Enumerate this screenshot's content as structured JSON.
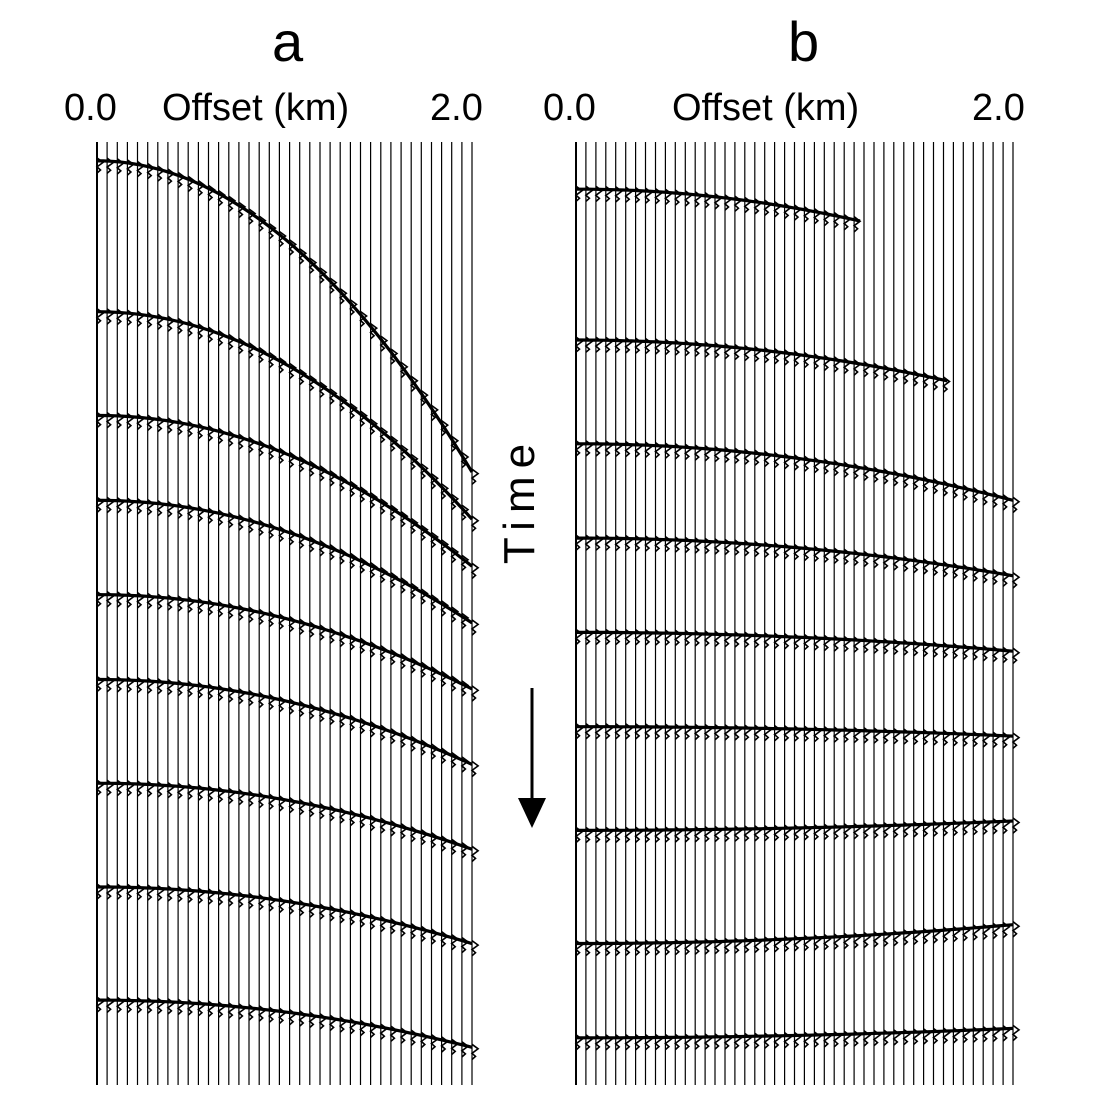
{
  "panels": [
    {
      "letter": "a",
      "axis_min": "0.0",
      "axis_label": "Offset (km)",
      "axis_max": "2.0",
      "trace_count": 38,
      "offset_range_km": [
        0.0,
        2.0
      ],
      "events": [
        {
          "start": 0.02,
          "bend": 0.33,
          "coverage": 1.0
        },
        {
          "start": 0.18,
          "bend": 0.22,
          "coverage": 1.0
        },
        {
          "start": 0.29,
          "bend": 0.16,
          "coverage": 1.0
        },
        {
          "start": 0.38,
          "bend": 0.13,
          "coverage": 1.0
        },
        {
          "start": 0.48,
          "bend": 0.1,
          "coverage": 1.0
        },
        {
          "start": 0.57,
          "bend": 0.09,
          "coverage": 1.0
        },
        {
          "start": 0.68,
          "bend": 0.07,
          "coverage": 1.0
        },
        {
          "start": 0.79,
          "bend": 0.06,
          "coverage": 1.0
        },
        {
          "start": 0.91,
          "bend": 0.05,
          "coverage": 1.0
        }
      ]
    },
    {
      "letter": "b",
      "axis_min": "0.0",
      "axis_label": "Offset (km)",
      "axis_max": "2.0",
      "trace_count": 45,
      "offset_range_km": [
        0.0,
        2.0
      ],
      "events": [
        {
          "start": 0.05,
          "bend": 0.08,
          "coverage": 0.65
        },
        {
          "start": 0.21,
          "bend": 0.06,
          "coverage": 0.85
        },
        {
          "start": 0.32,
          "bend": 0.06,
          "coverage": 1.0
        },
        {
          "start": 0.42,
          "bend": 0.04,
          "coverage": 1.0
        },
        {
          "start": 0.52,
          "bend": 0.02,
          "coverage": 1.0
        },
        {
          "start": 0.62,
          "bend": 0.01,
          "coverage": 1.0
        },
        {
          "start": 0.73,
          "bend": -0.01,
          "coverage": 1.0
        },
        {
          "start": 0.85,
          "bend": -0.02,
          "coverage": 1.0
        },
        {
          "start": 0.95,
          "bend": -0.01,
          "coverage": 1.0
        }
      ]
    }
  ],
  "time_label": "Time",
  "colors": {
    "ink": "#000000",
    "paper": "#ffffff"
  }
}
